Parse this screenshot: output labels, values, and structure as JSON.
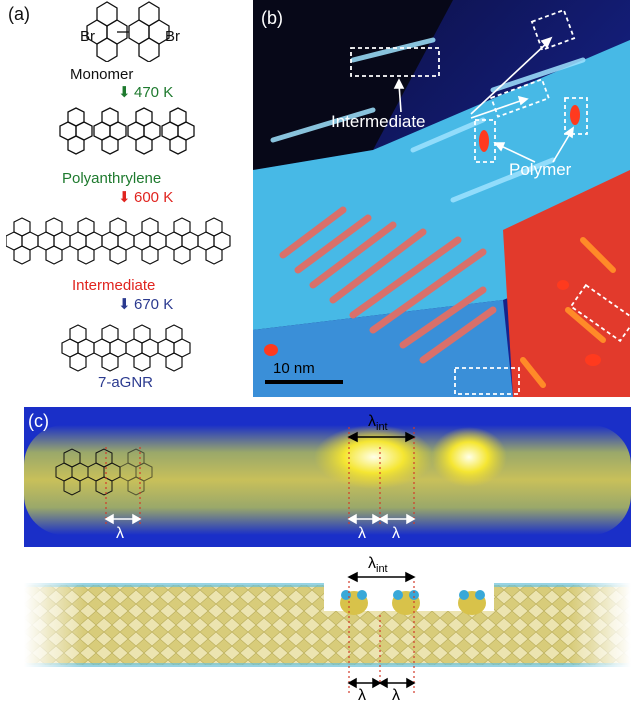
{
  "panel_a": {
    "label": "(a)",
    "br_left": "Br",
    "br_right": "Br",
    "monomer": "Monomer",
    "step1_temp": "470 K",
    "polyanthrylene": "Polyanthrylene",
    "step2_temp": "600 K",
    "intermediate": "Intermediate",
    "step3_temp": "670 K",
    "gnr": "7-aGNR",
    "colors": {
      "green": "#1e7a2e",
      "red": "#e0241f",
      "blue": "#2b3a8f"
    }
  },
  "panel_b": {
    "label": "(b)",
    "intermediate_label": "Intermediate",
    "polymer_label": "Polymer",
    "scale_bar": "10 nm"
  },
  "panel_c": {
    "label": "(c)",
    "lambda_int_top": "λint",
    "lambda_top_1": "λ",
    "lambda_top_2": "λ",
    "lambda_top_3": "λ",
    "lambda_int_bottom": "λint",
    "lambda_bottom_1": "λ",
    "lambda_bottom_2": "λ"
  }
}
